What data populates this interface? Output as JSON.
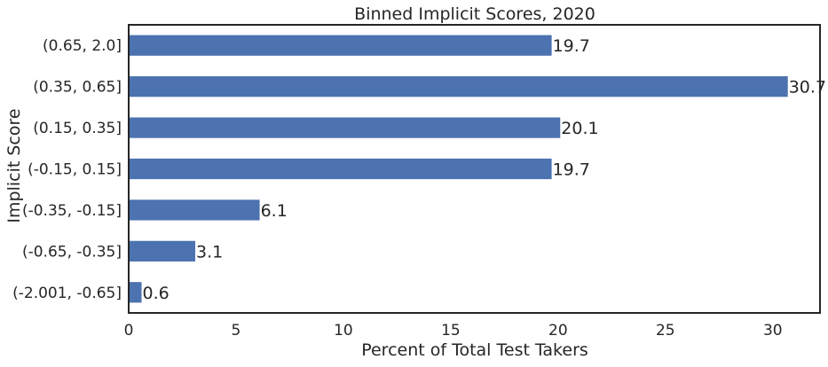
{
  "chart_data": {
    "type": "bar",
    "orientation": "horizontal",
    "title": "Binned Implicit Scores, 2020",
    "xlabel": "Percent of Total Test Takers",
    "ylabel": "Implicit Score",
    "categories": [
      "(0.65, 2.0]",
      "(0.35, 0.65]",
      "(0.15, 0.35]",
      "(-0.15, 0.15]",
      "(-0.35, -0.15]",
      "(-0.65, -0.35]",
      "(-2.001, -0.65]"
    ],
    "values": [
      19.7,
      30.7,
      20.1,
      19.7,
      6.1,
      3.1,
      0.6
    ],
    "data_labels": [
      "19.7",
      "30.7",
      "20.1",
      "19.7",
      "6.1",
      "3.1",
      "0.6"
    ],
    "xlim": [
      0,
      32.2
    ],
    "xticks": [
      0,
      5,
      10,
      15,
      20,
      25,
      30
    ],
    "xtick_labels": [
      "0",
      "5",
      "10",
      "15",
      "20",
      "25",
      "30"
    ],
    "grid": false,
    "legend": "none",
    "bar_color": "#4c72b0",
    "frame_color": "#262626"
  }
}
